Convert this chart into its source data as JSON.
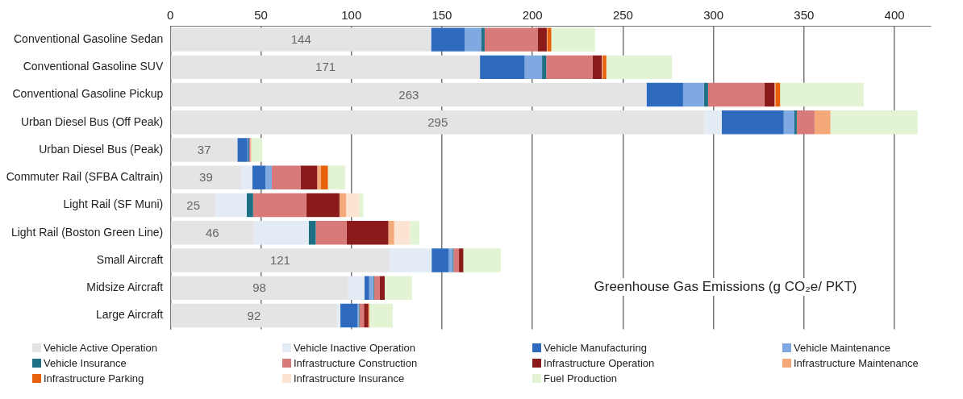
{
  "chart_data": {
    "type": "bar",
    "orientation": "horizontal",
    "stacked": true,
    "xlabel": "Greenhouse Gas Emissions (g CO₂e/ PKT)",
    "categories": [
      "Conventional Gasoline Sedan",
      "Conventional Gasoline SUV",
      "Conventional Gasoline Pickup",
      "Urban Diesel Bus (Off Peak)",
      "Urban Diesel Bus (Peak)",
      "Commuter Rail (SFBA Caltrain)",
      "Light Rail (SF Muni)",
      "Light Rail (Boston Green Line)",
      "Small Aircraft",
      "Midsize Aircraft",
      "Large Aircraft"
    ],
    "xlim": [
      0,
      420
    ],
    "xticks": [
      0,
      50,
      100,
      150,
      200,
      250,
      300,
      350,
      400
    ],
    "grid": "x",
    "legend": "bottom",
    "series": [
      {
        "name": "Vehicle Active Operation",
        "color": "#e4e4e4",
        "values": [
          144,
          171,
          263,
          295,
          37,
          39,
          25,
          46,
          121,
          98,
          92
        ],
        "value_labels": [
          "144",
          "171",
          "263",
          "295",
          "37",
          "39",
          "25",
          "46",
          "121",
          "98",
          "92"
        ]
      },
      {
        "name": "Vehicle Inactive Operation",
        "color": "#e3ebf4",
        "values": [
          0,
          0,
          0,
          9.6,
          null,
          6.3,
          17.2,
          30.4,
          23.3,
          9.2,
          1.9
        ]
      },
      {
        "name": "Vehicle Manufacturing",
        "color": "#2e6bbf",
        "values": [
          18.6,
          24.7,
          20.2,
          34.2,
          5.6,
          7.2,
          0,
          0,
          9.5,
          2.6,
          9.5
        ]
      },
      {
        "name": "Vehicle Maintenance",
        "color": "#7fa9e0",
        "values": [
          9,
          9.6,
          11.5,
          5.9,
          0.5,
          3.5,
          0,
          0,
          2.1,
          2.2,
          0.5
        ]
      },
      {
        "name": "Vehicle Insurance",
        "color": "#1f6f85",
        "values": [
          2,
          2.3,
          2.3,
          1.3,
          0.5,
          0,
          3.5,
          3.9,
          0.5,
          0.5,
          0.5
        ]
      },
      {
        "name": "Infrastructure Construction",
        "color": "#d97a7a",
        "values": [
          29.2,
          25.5,
          31.1,
          9.8,
          0.5,
          15.9,
          29.4,
          17.1,
          3,
          3.2,
          2.5
        ]
      },
      {
        "name": "Infrastructure Operation",
        "color": "#8b1a1a",
        "values": [
          5.1,
          5.2,
          5.6,
          0,
          0,
          9.2,
          18.3,
          23,
          2.4,
          2.7,
          2.4
        ]
      },
      {
        "name": "Infrastructure Maintenance",
        "color": "#f5a878",
        "values": [
          0.5,
          0.5,
          0.5,
          8.8,
          0.5,
          2,
          3.6,
          3.2,
          0,
          0,
          0
        ]
      },
      {
        "name": "Infrastructure Parking",
        "color": "#e8600a",
        "values": [
          2,
          2,
          2.6,
          0,
          0,
          3.9,
          0,
          0,
          0,
          0,
          0.5
        ]
      },
      {
        "name": "Infrastructure Insurance",
        "color": "#fbe5d2",
        "values": [
          0,
          0,
          0,
          0,
          0,
          0,
          7.2,
          8.8,
          0,
          0,
          0
        ]
      },
      {
        "name": "Fuel Production",
        "color": "#e2f4d4",
        "values": [
          24.2,
          36.3,
          46.2,
          48.2,
          6.1,
          9.6,
          2.4,
          5.2,
          20.7,
          15.1,
          13
        ]
      }
    ]
  }
}
